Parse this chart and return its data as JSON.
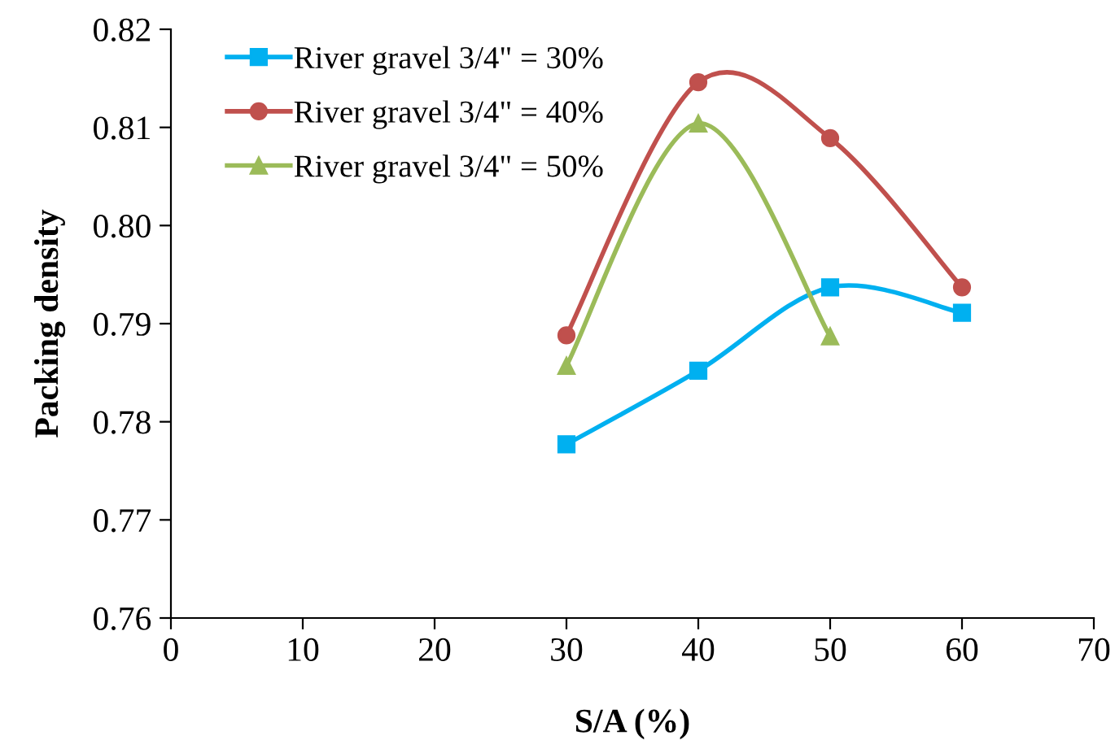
{
  "chart_data": {
    "type": "line",
    "xlabel": "S/A (%)",
    "ylabel": "Packing density",
    "x": [
      30,
      40,
      50,
      60
    ],
    "series": [
      {
        "name": "River gravel 3/4\" = 30%",
        "color": "#00b0f0",
        "marker": "square",
        "values": [
          0.7777,
          0.7852,
          0.7937,
          0.7911
        ]
      },
      {
        "name": "River gravel 3/4\" = 40%",
        "color": "#c0504d",
        "marker": "circle",
        "values": [
          0.7888,
          0.8146,
          0.8089,
          0.7937
        ]
      },
      {
        "name": "River gravel 3/4\" = 50%",
        "color": "#9bbb59",
        "marker": "triangle",
        "values": [
          0.7857,
          0.8104,
          0.7887,
          null
        ]
      }
    ],
    "xlim": [
      0,
      70
    ],
    "xticks": [
      0,
      10,
      20,
      30,
      40,
      50,
      60,
      70
    ],
    "ylim": [
      0.76,
      0.82
    ],
    "yticks": [
      {
        "value": 0.76,
        "label": "0.76"
      },
      {
        "value": 0.77,
        "label": "0.77"
      },
      {
        "value": 0.78,
        "label": "0.78"
      },
      {
        "value": 0.79,
        "label": "0.79"
      },
      {
        "value": 0.8,
        "label": "0.80"
      },
      {
        "value": 0.81,
        "label": "0.81"
      },
      {
        "value": 0.82,
        "label": "0.82"
      }
    ],
    "grid": false,
    "legend": "top left"
  }
}
